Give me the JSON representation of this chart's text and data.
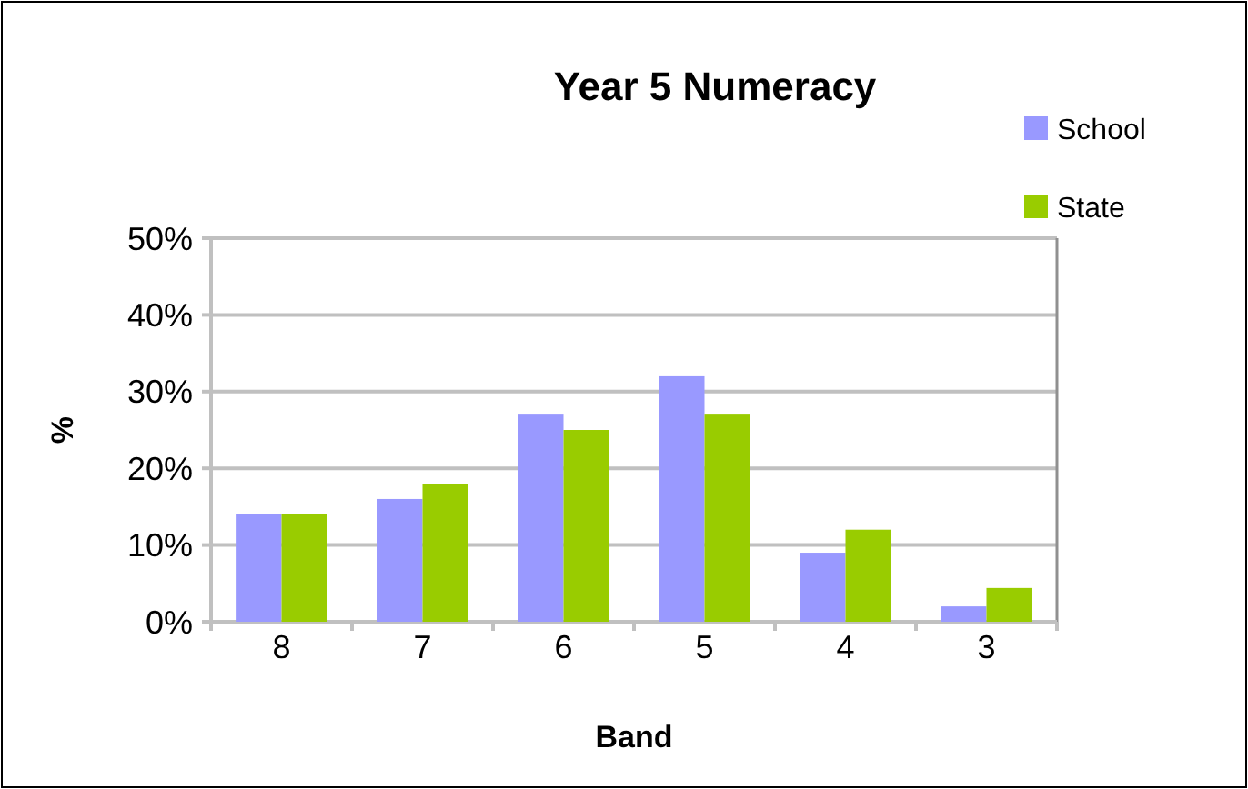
{
  "chart_data": {
    "type": "bar",
    "title": "Year 5 Numeracy",
    "xlabel": "Band",
    "ylabel": "%",
    "categories": [
      "8",
      "7",
      "6",
      "5",
      "4",
      "3"
    ],
    "series": [
      {
        "name": "School",
        "color": "#9999ff",
        "values": [
          14,
          16,
          27,
          32,
          9,
          2
        ]
      },
      {
        "name": "State",
        "color": "#99cc00",
        "values": [
          14,
          18,
          25,
          27,
          12,
          4.4
        ]
      }
    ],
    "ylim": [
      0,
      50
    ],
    "yticks": [
      {
        "value": 0,
        "label": "0%"
      },
      {
        "value": 10,
        "label": "10%"
      },
      {
        "value": 20,
        "label": "20%"
      },
      {
        "value": 30,
        "label": "30%"
      },
      {
        "value": 40,
        "label": "40%"
      },
      {
        "value": 50,
        "label": "50%"
      }
    ],
    "grid": "y",
    "legend": "top right"
  }
}
